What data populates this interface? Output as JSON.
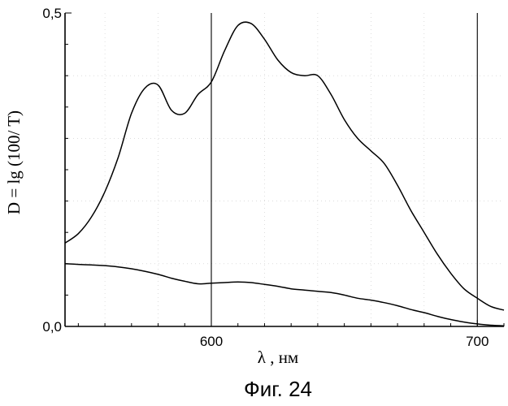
{
  "chart_data": {
    "type": "line",
    "title": "",
    "xlabel": "λ , нм",
    "ylabel": "D = lg (100/ T)",
    "caption": "Фиг. 24",
    "xlim": [
      545,
      710
    ],
    "ylim": [
      0,
      0.5
    ],
    "x_ticks": [
      {
        "value": 600,
        "label": "600"
      },
      {
        "value": 700,
        "label": "700"
      }
    ],
    "y_ticks": [
      {
        "value": 0.0,
        "label": "0,0"
      },
      {
        "value": 0.5,
        "label": "0,5"
      }
    ],
    "vertical_lines": [
      600,
      700
    ],
    "grid": "dotted",
    "series": [
      {
        "x": [
          545,
          550,
          555,
          560,
          565,
          570,
          575,
          580,
          585,
          590,
          595,
          600,
          605,
          610,
          615,
          620,
          625,
          630,
          635,
          640,
          645,
          650,
          655,
          660,
          665,
          670,
          675,
          680,
          685,
          690,
          695,
          700,
          705,
          710
        ],
        "y": [
          0.133,
          0.148,
          0.175,
          0.215,
          0.27,
          0.34,
          0.38,
          0.385,
          0.345,
          0.34,
          0.37,
          0.39,
          0.44,
          0.48,
          0.483,
          0.458,
          0.425,
          0.405,
          0.4,
          0.4,
          0.37,
          0.33,
          0.3,
          0.28,
          0.26,
          0.225,
          0.185,
          0.15,
          0.115,
          0.085,
          0.06,
          0.045,
          0.032,
          0.026
        ]
      },
      {
        "x": [
          545,
          550,
          555,
          560,
          565,
          570,
          575,
          580,
          585,
          590,
          595,
          600,
          605,
          610,
          615,
          620,
          625,
          630,
          635,
          640,
          645,
          650,
          655,
          660,
          665,
          670,
          675,
          680,
          685,
          690,
          695,
          700,
          705,
          710
        ],
        "y": [
          0.1,
          0.099,
          0.098,
          0.097,
          0.095,
          0.092,
          0.088,
          0.083,
          0.077,
          0.072,
          0.068,
          0.069,
          0.07,
          0.071,
          0.07,
          0.067,
          0.064,
          0.06,
          0.058,
          0.056,
          0.054,
          0.05,
          0.045,
          0.042,
          0.038,
          0.033,
          0.027,
          0.022,
          0.016,
          0.011,
          0.007,
          0.004,
          0.002,
          0.001
        ]
      }
    ]
  }
}
